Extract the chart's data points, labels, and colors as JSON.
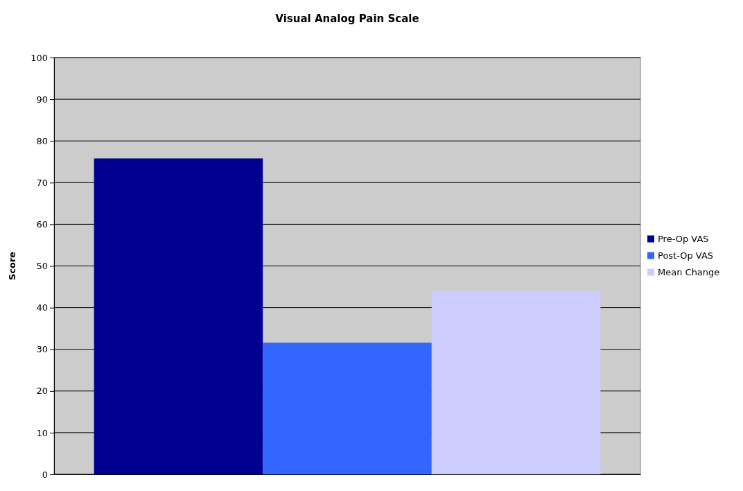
{
  "chart_data": {
    "type": "bar",
    "title": "Visual Analog Pain Scale",
    "ylabel": "Score",
    "categories": [
      null
    ],
    "series": [
      {
        "name": "Pre-Op VAS",
        "color": "#000090",
        "values": [
          75.8
        ]
      },
      {
        "name": "Post-Op VAS",
        "color": "#3366ff",
        "values": [
          31.6
        ]
      },
      {
        "name": "Mean Change",
        "color": "#ccccff",
        "values": [
          44
        ]
      }
    ],
    "ylim": [
      0,
      100
    ],
    "yticks": [
      0,
      10,
      20,
      30,
      40,
      50,
      60,
      70,
      80,
      90,
      100
    ],
    "grid": "y",
    "legend": "right"
  }
}
